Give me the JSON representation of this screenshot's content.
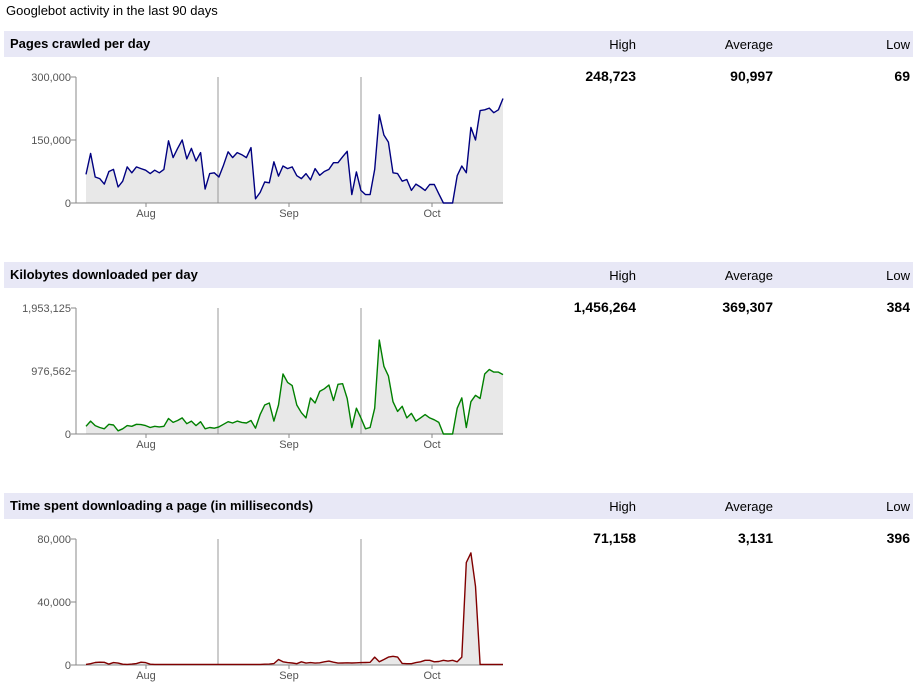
{
  "page_title": "Googlebot activity in the last 90 days",
  "column_headers": {
    "high": "High",
    "average": "Average",
    "low": "Low"
  },
  "sections": [
    {
      "title": "Pages crawled per day",
      "stats": {
        "high": "248,723",
        "average": "90,997",
        "low": "69"
      }
    },
    {
      "title": "Kilobytes downloaded per day",
      "stats": {
        "high": "1,456,264",
        "average": "369,307",
        "low": "384"
      }
    },
    {
      "title": "Time spent downloading a page (in milliseconds)",
      "stats": {
        "high": "71,158",
        "average": "3,131",
        "low": "396"
      }
    }
  ],
  "chart_data": [
    {
      "type": "area",
      "ylim": [
        0,
        300000
      ],
      "yticks": [
        0,
        150000,
        300000
      ],
      "ytick_labels": [
        "0",
        "150,000",
        "300,000"
      ],
      "xtick_labels": [
        "Aug",
        "Sep",
        "Oct"
      ],
      "color": "#000080",
      "fill": "#e8e8e8",
      "values": [
        68000,
        118000,
        62000,
        58000,
        45000,
        75000,
        80000,
        38000,
        52000,
        86000,
        72000,
        86000,
        82000,
        78000,
        70000,
        78000,
        72000,
        80000,
        148000,
        108000,
        130000,
        150000,
        105000,
        130000,
        100000,
        120000,
        33000,
        70000,
        72000,
        62000,
        90000,
        122000,
        108000,
        120000,
        115000,
        108000,
        132000,
        10000,
        25000,
        50000,
        48000,
        98000,
        64000,
        88000,
        82000,
        86000,
        65000,
        58000,
        70000,
        55000,
        82000,
        66000,
        75000,
        80000,
        96000,
        96000,
        110000,
        123000,
        20000,
        74000,
        30000,
        20000,
        20000,
        80000,
        210000,
        162000,
        145000,
        72000,
        70000,
        52000,
        56000,
        30000,
        45000,
        38000,
        30000,
        44000,
        44000,
        22000,
        0,
        0,
        0,
        65000,
        88000,
        72000,
        180000,
        150000,
        220000,
        222000,
        226000,
        215000,
        222000,
        248723
      ]
    },
    {
      "type": "area",
      "ylim": [
        0,
        1953125
      ],
      "yticks": [
        0,
        976562,
        1953125
      ],
      "ytick_labels": [
        "0",
        "976,562",
        "1,953,125"
      ],
      "xtick_labels": [
        "Aug",
        "Sep",
        "Oct"
      ],
      "color": "#008000",
      "fill": "#e8e8e8",
      "values": [
        120000,
        200000,
        130000,
        100000,
        80000,
        150000,
        140000,
        50000,
        80000,
        130000,
        120000,
        150000,
        145000,
        130000,
        100000,
        120000,
        110000,
        120000,
        240000,
        180000,
        210000,
        250000,
        160000,
        200000,
        130000,
        190000,
        80000,
        100000,
        90000,
        110000,
        150000,
        190000,
        170000,
        200000,
        180000,
        170000,
        210000,
        90000,
        300000,
        450000,
        480000,
        200000,
        450000,
        930000,
        800000,
        750000,
        450000,
        330000,
        250000,
        560000,
        480000,
        660000,
        700000,
        760000,
        520000,
        770000,
        780000,
        550000,
        100000,
        400000,
        250000,
        80000,
        100000,
        400000,
        1456264,
        1050000,
        900000,
        500000,
        350000,
        430000,
        250000,
        320000,
        200000,
        250000,
        300000,
        250000,
        220000,
        180000,
        0,
        0,
        0,
        400000,
        560000,
        100000,
        500000,
        600000,
        550000,
        930000,
        1000000,
        960000,
        960000,
        920000
      ]
    },
    {
      "type": "area",
      "ylim": [
        0,
        80000
      ],
      "yticks": [
        0,
        40000,
        80000
      ],
      "ytick_labels": [
        "0",
        "40,000",
        "80,000"
      ],
      "xtick_labels": [
        "Aug",
        "Sep",
        "Oct"
      ],
      "color": "#800000",
      "fill": "#e8e8e8",
      "values": [
        400,
        800,
        1600,
        1800,
        1700,
        600,
        1500,
        1200,
        500,
        400,
        600,
        900,
        1800,
        1500,
        500,
        400,
        400,
        400,
        400,
        400,
        400,
        400,
        400,
        400,
        400,
        400,
        400,
        400,
        400,
        400,
        400,
        400,
        400,
        400,
        400,
        400,
        400,
        400,
        400,
        500,
        600,
        900,
        3500,
        2000,
        1500,
        1300,
        800,
        2000,
        1200,
        1500,
        1200,
        1400,
        2000,
        2500,
        1800,
        1200,
        1300,
        1400,
        1300,
        1400,
        1500,
        1600,
        1700,
        5000,
        2000,
        3500,
        5000,
        5500,
        5000,
        1000,
        800,
        800,
        1500,
        2000,
        3000,
        3000,
        2000,
        2200,
        3000,
        2500,
        3000,
        2000,
        5000,
        65000,
        71158,
        50000,
        400,
        400,
        400,
        400,
        400,
        400
      ]
    }
  ]
}
